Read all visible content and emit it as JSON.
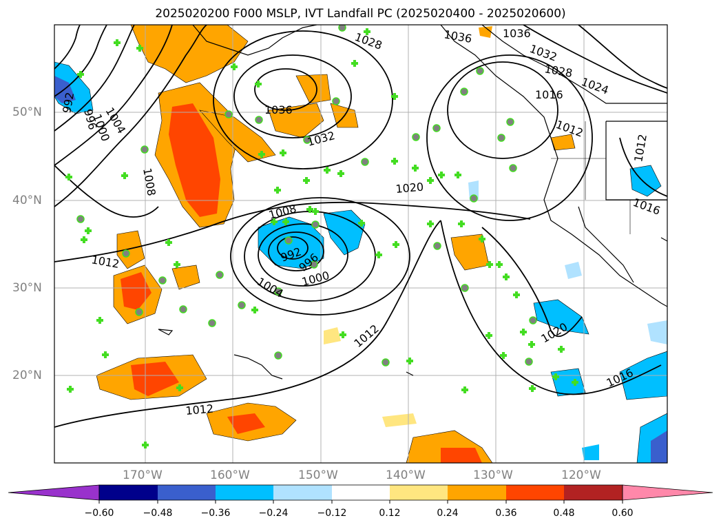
{
  "title": "2025020200 F000 MSLP, IVT Landfall PC (2025020400 - 2025020600)",
  "lat_labels": [
    "50°N",
    "40°N",
    "30°N",
    "20°N"
  ],
  "lon_labels": [
    "170°W",
    "160°W",
    "150°W",
    "140°W",
    "130°W",
    "120°W"
  ],
  "isobar_labels": [
    "1036",
    "1032",
    "1028",
    "1024",
    "1020",
    "1016",
    "1012",
    "1008",
    "1004",
    "1000",
    "996",
    "992"
  ],
  "colorbar": {
    "tick_labels": [
      "−0.60",
      "−0.48",
      "−0.36",
      "−0.24",
      "−0.12",
      "0.12",
      "0.24",
      "0.36",
      "0.48",
      "0.60"
    ],
    "colors": [
      "#9932CC",
      "#00008B",
      "#3A5FCD",
      "#00BFFF",
      "#B0E2FF",
      "#FFFFFF",
      "#FFE680",
      "#FFA500",
      "#FF4500",
      "#B22222",
      "#FF88AA"
    ]
  },
  "colors": {
    "land_line": "#000000",
    "grid": "#b0b0b0",
    "marker": "#44dd22",
    "marker_dot": "#808080"
  }
}
